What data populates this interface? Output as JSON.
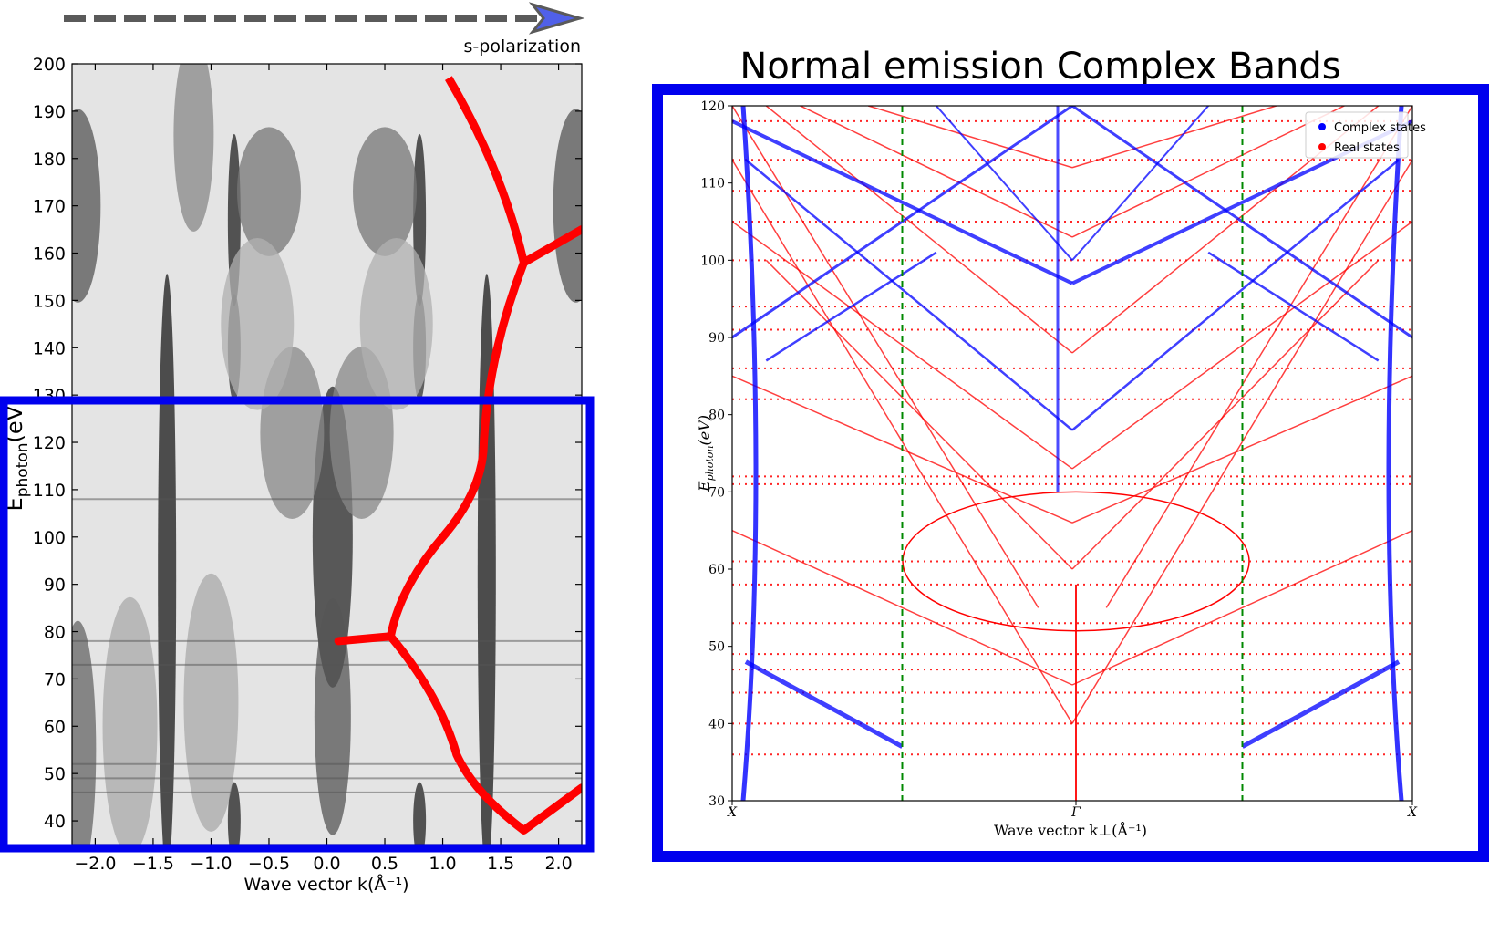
{
  "figure": {
    "arrow_label": "s-polarization",
    "arrow_color": "#5a5a5a",
    "arrow_head_color": "#5060e8",
    "box_color": "#0000ee",
    "red_curve_color": "#ff0000"
  },
  "chart_data": [
    {
      "type": "heatmap",
      "colormap": "grayscale",
      "title": "",
      "xlabel": "Wave vector k(Å⁻¹)",
      "ylabel_main": "E",
      "ylabel_sub": "photon",
      "ylabel_tail": "(eV)",
      "xlim": [
        -2.2,
        2.2
      ],
      "ylim": [
        35,
        200
      ],
      "xticks": [
        -2.0,
        -1.5,
        -1.0,
        -0.5,
        0.0,
        0.5,
        1.0,
        1.5,
        2.0
      ],
      "xtick_labels": [
        "−2.0",
        "−1.5",
        "−1.0",
        "−0.5",
        "0.0",
        "0.5",
        "1.0",
        "1.5",
        "2.0"
      ],
      "yticks": [
        40,
        50,
        60,
        70,
        80,
        90,
        100,
        110,
        120,
        130,
        140,
        150,
        160,
        170,
        180,
        190,
        200
      ],
      "ytick_labels": [
        "40",
        "50",
        "60",
        "70",
        "80",
        "90",
        "100",
        "110",
        "120",
        "130",
        "140",
        "150",
        "160",
        "170",
        "180",
        "190",
        "200"
      ],
      "red_curve": [
        {
          "x": 1.05,
          "y": 197
        },
        {
          "x": 1.7,
          "y": 158
        },
        {
          "x": 1.35,
          "y": 118
        },
        {
          "x": 1.0,
          "y": 100
        },
        {
          "x": 0.55,
          "y": 79
        },
        {
          "x": 1.12,
          "y": 54
        },
        {
          "x": 1.7,
          "y": 38
        }
      ],
      "red_curve_branches": [
        [
          {
            "x": 1.7,
            "y": 158
          },
          {
            "x": 2.2,
            "y": 165
          }
        ],
        [
          {
            "x": 0.55,
            "y": 79
          },
          {
            "x": 0.1,
            "y": 78
          }
        ],
        [
          {
            "x": 1.7,
            "y": 38
          },
          {
            "x": 2.2,
            "y": 47
          }
        ]
      ]
    },
    {
      "type": "scatter",
      "title": "Normal emission Complex Bands",
      "xlabel": "Wave vector k⊥(Å⁻¹)",
      "ylabel_main": "E",
      "ylabel_sub": "photon",
      "ylabel_tail": "(eV)",
      "ylim": [
        30,
        120
      ],
      "yticks": [
        30,
        40,
        50,
        60,
        70,
        80,
        90,
        100,
        110,
        120
      ],
      "ytick_labels": [
        "30",
        "40",
        "50",
        "60",
        "70",
        "80",
        "90",
        "100",
        "110",
        "120"
      ],
      "xtick_labels": [
        "X",
        "Γ",
        "X"
      ],
      "grid": false,
      "legend_position": "top-right",
      "series": [
        {
          "name": "Complex states",
          "color": "#0000ff"
        },
        {
          "name": "Real states",
          "color": "#ff0000"
        }
      ]
    }
  ]
}
